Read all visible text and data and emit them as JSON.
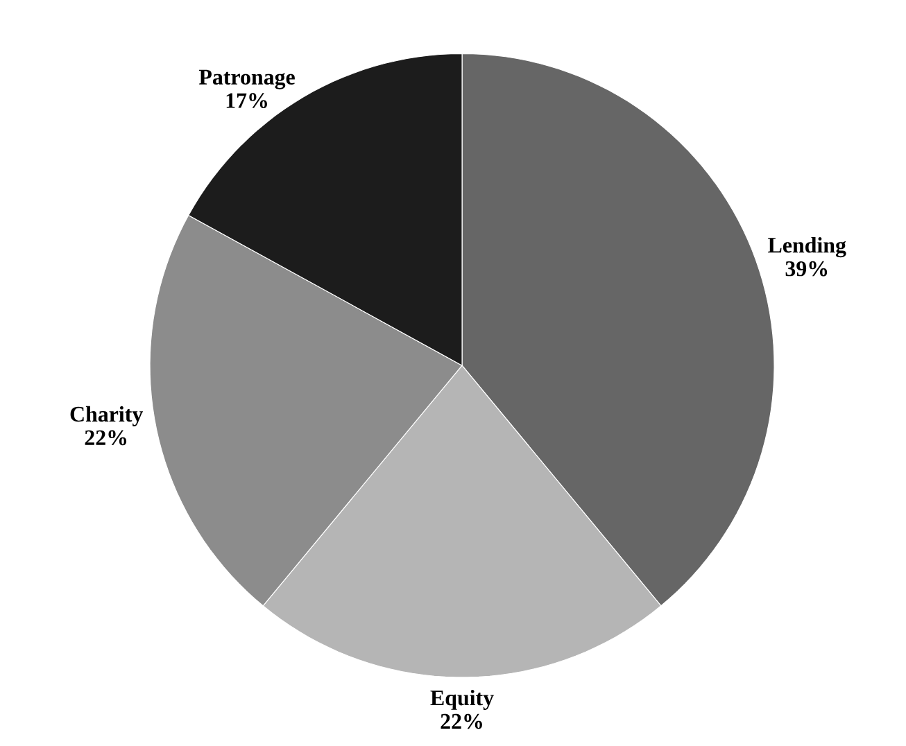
{
  "chart_data": {
    "type": "pie",
    "categories": [
      "Lending",
      "Equity",
      "Charity",
      "Patronage"
    ],
    "values": [
      39,
      22,
      22,
      17
    ],
    "colors": [
      "#666666",
      "#b5b5b5",
      "#8c8c8c",
      "#1c1c1c"
    ],
    "value_labels": [
      "39%",
      "22%",
      "22%",
      "17%"
    ]
  }
}
